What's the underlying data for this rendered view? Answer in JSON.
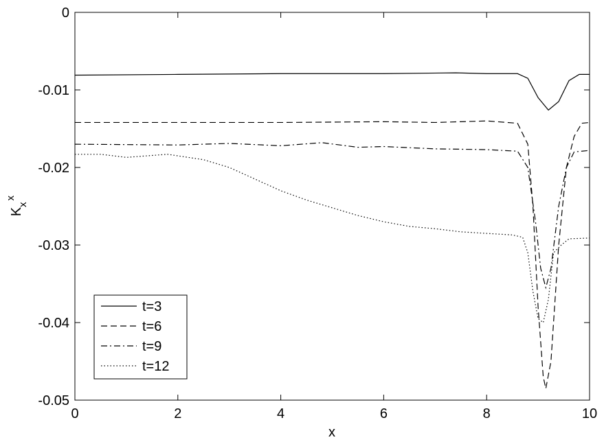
{
  "chart_data": {
    "type": "line",
    "xlabel": "x",
    "ylabel": {
      "base": "K",
      "sub": "x",
      "sup": "x"
    },
    "xlim": [
      0,
      10
    ],
    "xticks": [
      0,
      2,
      4,
      6,
      8,
      10
    ],
    "ylim": [
      -0.05,
      0
    ],
    "yticks": [
      -0.05,
      -0.04,
      -0.03,
      -0.02,
      -0.01,
      0
    ],
    "legend": "lower left",
    "series": [
      {
        "name": "t=3",
        "color": "#000000",
        "dash": "solid",
        "x": [
          0,
          2,
          4,
          6,
          7.4,
          8,
          8.6,
          8.8,
          9.0,
          9.2,
          9.4,
          9.6,
          9.8,
          10
        ],
        "values": [
          -0.0081,
          -0.008,
          -0.0079,
          -0.0079,
          -0.0078,
          -0.0079,
          -0.0079,
          -0.0085,
          -0.011,
          -0.0126,
          -0.0115,
          -0.0088,
          -0.008,
          -0.008
        ]
      },
      {
        "name": "t=6",
        "color": "#000000",
        "dash": "dashed",
        "x": [
          0,
          2,
          4,
          6,
          7,
          8,
          8.6,
          8.8,
          8.9,
          9.0,
          9.1,
          9.15,
          9.25,
          9.4,
          9.55,
          9.7,
          9.85,
          10
        ],
        "values": [
          -0.0142,
          -0.0142,
          -0.0142,
          -0.0141,
          -0.0142,
          -0.014,
          -0.0143,
          -0.017,
          -0.025,
          -0.038,
          -0.047,
          -0.0485,
          -0.045,
          -0.03,
          -0.02,
          -0.016,
          -0.0143,
          -0.0142
        ]
      },
      {
        "name": "t=9",
        "color": "#000000",
        "dash": "dashdot",
        "x": [
          0,
          2,
          3,
          4,
          4.8,
          5.5,
          6,
          7,
          8,
          8.6,
          8.8,
          8.95,
          9.05,
          9.15,
          9.25,
          9.4,
          9.55,
          9.7,
          10
        ],
        "values": [
          -0.017,
          -0.0171,
          -0.0169,
          -0.0172,
          -0.0168,
          -0.0174,
          -0.0173,
          -0.0176,
          -0.0177,
          -0.0179,
          -0.02,
          -0.027,
          -0.033,
          -0.0355,
          -0.033,
          -0.025,
          -0.02,
          -0.018,
          -0.0178
        ]
      },
      {
        "name": "t=12",
        "color": "#000000",
        "dash": "dotted",
        "x": [
          0,
          0.5,
          1,
          1.8,
          2.5,
          3,
          3.5,
          4,
          4.5,
          5,
          5.5,
          6,
          6.5,
          7,
          7.5,
          8,
          8.5,
          8.7,
          8.8,
          8.9,
          9.0,
          9.1,
          9.2,
          9.3,
          9.45,
          9.6,
          10
        ],
        "values": [
          -0.0183,
          -0.0183,
          -0.0187,
          -0.0183,
          -0.019,
          -0.02,
          -0.0215,
          -0.023,
          -0.0242,
          -0.0252,
          -0.0262,
          -0.027,
          -0.0276,
          -0.0279,
          -0.0283,
          -0.0285,
          -0.0287,
          -0.029,
          -0.031,
          -0.036,
          -0.0395,
          -0.04,
          -0.037,
          -0.031,
          -0.03,
          -0.0292,
          -0.0291
        ]
      }
    ]
  }
}
